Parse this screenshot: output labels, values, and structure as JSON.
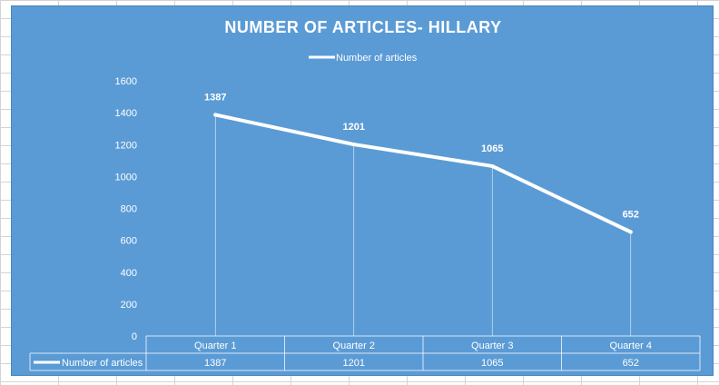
{
  "chart_data": {
    "type": "line",
    "title": "NUMBER OF ARTICLES- HILLARY",
    "categories": [
      "Quarter 1",
      "Quarter 2",
      "Quarter 3",
      "Quarter 4"
    ],
    "series": [
      {
        "name": "Number of articles",
        "values": [
          1387,
          1201,
          1065,
          652
        ]
      }
    ],
    "y_ticks": [
      "0",
      "200",
      "400",
      "600",
      "800",
      "1000",
      "1200",
      "1400",
      "1600"
    ],
    "ylim": [
      0,
      1600
    ],
    "data_labels": [
      "1387",
      "1201",
      "1065",
      "652"
    ],
    "legend_position": "top",
    "data_table": true,
    "grid": false,
    "colors": {
      "background": "#5b9bd5",
      "line": "#ffffff",
      "text": "#ffffff"
    }
  }
}
